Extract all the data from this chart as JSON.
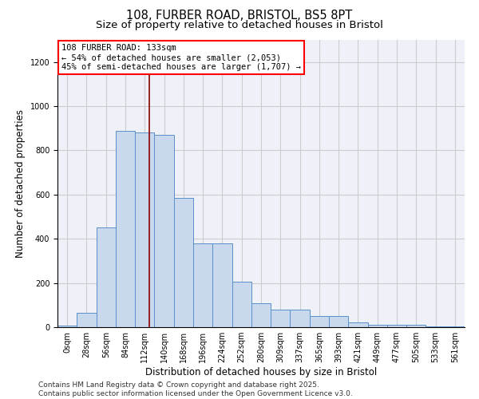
{
  "title_line1": "108, FURBER ROAD, BRISTOL, BS5 8PT",
  "title_line2": "Size of property relative to detached houses in Bristol",
  "xlabel": "Distribution of detached houses by size in Bristol",
  "ylabel": "Number of detached properties",
  "bar_labels": [
    "0sqm",
    "28sqm",
    "56sqm",
    "84sqm",
    "112sqm",
    "140sqm",
    "168sqm",
    "196sqm",
    "224sqm",
    "252sqm",
    "280sqm",
    "309sqm",
    "337sqm",
    "365sqm",
    "393sqm",
    "421sqm",
    "449sqm",
    "477sqm",
    "505sqm",
    "533sqm",
    "561sqm"
  ],
  "bar_values": [
    8,
    65,
    450,
    890,
    880,
    870,
    585,
    380,
    380,
    205,
    110,
    80,
    80,
    50,
    50,
    20,
    12,
    10,
    12,
    2,
    2
  ],
  "bar_color": "#c9d9ed",
  "bar_edge_color": "#5b8fc9",
  "bar_width": 1.0,
  "annotation_title": "108 FURBER ROAD: 133sqm",
  "annotation_line2": "← 54% of detached houses are smaller (2,053)",
  "annotation_line3": "45% of semi-detached houses are larger (1,707) →",
  "annotation_box_color": "white",
  "annotation_box_edge": "red",
  "red_line_color": "#8b0000",
  "ylim": [
    0,
    1300
  ],
  "yticks": [
    0,
    200,
    400,
    600,
    800,
    1000,
    1200
  ],
  "grid_color": "#cccccc",
  "background_color": "#eef2f8",
  "footer_line1": "Contains HM Land Registry data © Crown copyright and database right 2025.",
  "footer_line2": "Contains public sector information licensed under the Open Government Licence v3.0.",
  "title_fontsize": 10.5,
  "subtitle_fontsize": 9.5,
  "annotation_fontsize": 7.5,
  "axis_label_fontsize": 8.5,
  "tick_fontsize": 7,
  "footer_fontsize": 6.5
}
